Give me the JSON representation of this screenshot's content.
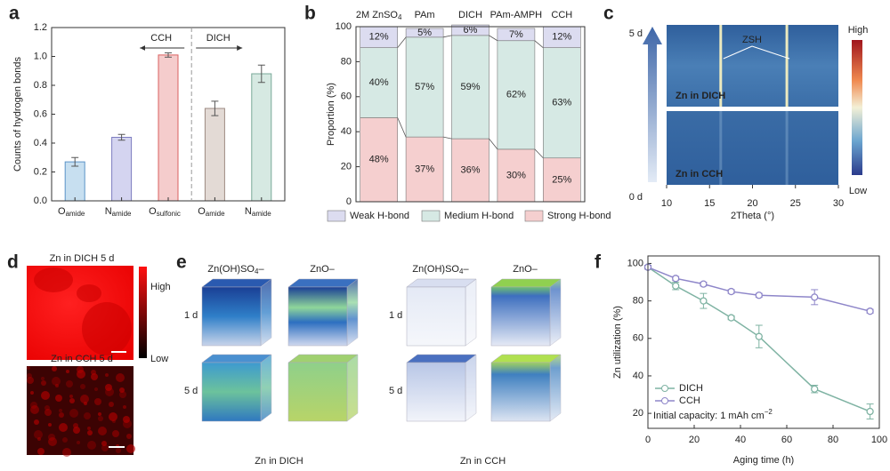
{
  "chart_data": [
    {
      "panel": "a",
      "type": "bar",
      "ylabel": "Counts of hydrogen bonds",
      "categories": [
        {
          "text": "O",
          "sub": "amide"
        },
        {
          "text": "N",
          "sub": "amide"
        },
        {
          "text": "O",
          "sub": "sulfonic"
        },
        {
          "text": "O",
          "sub": "amide"
        },
        {
          "text": "N",
          "sub": "amide"
        }
      ],
      "values": [
        0.27,
        0.44,
        1.01,
        0.64,
        0.88
      ],
      "errors": [
        0.03,
        0.02,
        0.015,
        0.05,
        0.06
      ],
      "colors": [
        "#c7dff0",
        "#d4d4f0",
        "#f5cccc",
        "#e3dad5",
        "#d6e9e2"
      ],
      "edge_colors": [
        "#5b93c8",
        "#7d7dc0",
        "#d9605f",
        "#9c8a82",
        "#78a898"
      ],
      "ylim": [
        0,
        1.2
      ],
      "yticks": [
        {
          "value": 0,
          "label": "0.0"
        },
        0.2,
        0.4,
        0.6,
        0.8,
        {
          "value": 1,
          "label": "1.0"
        },
        1.2
      ],
      "annotations": [
        {
          "text": "CCH",
          "direction": "left"
        },
        {
          "text": "DICH",
          "direction": "right"
        }
      ]
    },
    {
      "panel": "b",
      "type": "stacked_bar",
      "ylabel": "Proportion (%)",
      "categories": [
        {
          "text": "2M ZnSO",
          "sub": "4"
        },
        "PAm",
        "DICH",
        "PAm-AMPH",
        "CCH"
      ],
      "series": [
        {
          "name": "Weak H-bond",
          "color": "#dcdcf0",
          "values": [
            12,
            5,
            6,
            7,
            12
          ],
          "value_labels": [
            "12%",
            "5%",
            "6%",
            "7%",
            "12%"
          ]
        },
        {
          "name": "Medium H-bond",
          "color": "#d6e9e4",
          "values": [
            40,
            57,
            59,
            62,
            63
          ],
          "value_labels": [
            "40%",
            "57%",
            "59%",
            "62%",
            "63%"
          ]
        },
        {
          "name": "Strong H-bond",
          "color": "#f5cfcf",
          "values": [
            48,
            37,
            36,
            30,
            25
          ],
          "value_labels": [
            "48%",
            "37%",
            "36%",
            "30%",
            "25%"
          ]
        }
      ],
      "ylim": [
        0,
        100
      ],
      "yticks": [
        0,
        20,
        40,
        60,
        80,
        100
      ],
      "legend": "bottom"
    },
    {
      "panel": "c",
      "type": "heatmap",
      "xlabel": "2Theta (°)",
      "xlim": [
        10,
        30
      ],
      "xticks": [
        10,
        15,
        20,
        25,
        30
      ],
      "maps": [
        "Zn in DICH",
        "Zn in CCH"
      ],
      "time_labels": [
        "5 d",
        "0 d"
      ],
      "annotation": "ZSH",
      "peaks": [
        16.3,
        24
      ],
      "colorbar": [
        "High",
        "Low"
      ]
    },
    {
      "panel": "d",
      "type": "image",
      "titles": [
        "Zn in DICH 5 d",
        "Zn in CCH 5 d"
      ],
      "colorbar": [
        "High",
        "Low"
      ]
    },
    {
      "panel": "e",
      "type": "image3d",
      "groups": [
        {
          "name": "Zn in DICH",
          "columns": [
            {
              "text": "Zn(OH)SO",
              "sub": "4",
              "suffix": "–"
            },
            "ZnO–"
          ],
          "rows": [
            "1 d",
            "5 d"
          ]
        },
        {
          "name": "Zn in CCH",
          "columns": [
            {
              "text": "Zn(OH)SO",
              "sub": "4",
              "suffix": "–"
            },
            "ZnO–"
          ],
          "rows": [
            "1 d",
            "5 d"
          ]
        }
      ]
    },
    {
      "panel": "f",
      "type": "line",
      "xlabel": "Aging time (h)",
      "ylabel": "Zn utilization (%)",
      "x": [
        0,
        12,
        24,
        36,
        48,
        72,
        96
      ],
      "series": [
        {
          "name": "DICH",
          "color": "#7fb3a3",
          "values": [
            98,
            88,
            80,
            71,
            61,
            33,
            21
          ],
          "errors": [
            1,
            2,
            4,
            1,
            6,
            2,
            4
          ]
        },
        {
          "name": "CCH",
          "color": "#8e86c9",
          "values": [
            98,
            92,
            89,
            85,
            83,
            82,
            74.5
          ],
          "errors": [
            1,
            1,
            1,
            1,
            1,
            4,
            1
          ]
        }
      ],
      "xlim": [
        0,
        100
      ],
      "xticks": [
        0,
        20,
        40,
        60,
        80,
        100
      ],
      "ylim": [
        12,
        104
      ],
      "yticks": [
        20,
        40,
        60,
        80,
        100
      ],
      "annotation": {
        "text": "Initial capacity: 1 mAh cm",
        "sup": "−2"
      },
      "legend": "lower left"
    }
  ]
}
